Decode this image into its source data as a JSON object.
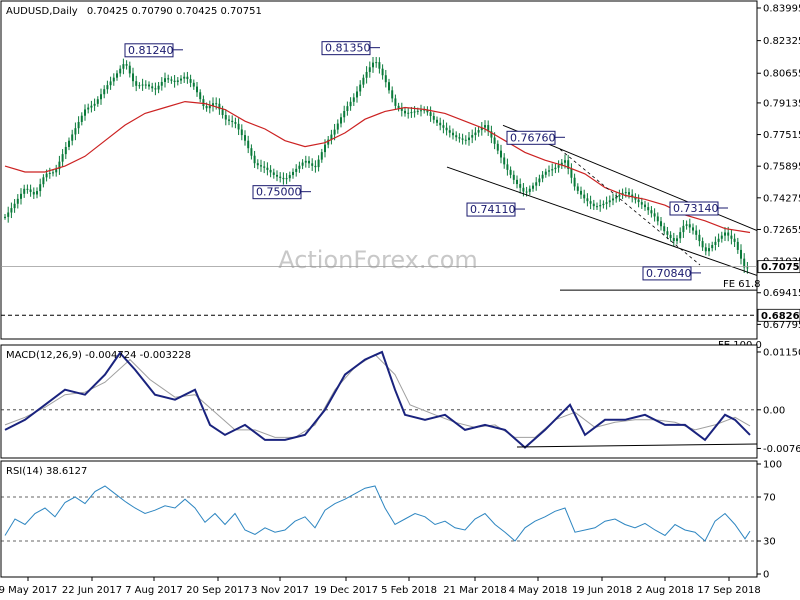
{
  "header": {
    "symbol": "AUDUSD,Daily",
    "ohlc": "0.70425 0.70790 0.70425 0.70751"
  },
  "watermark": "ActionForex.com",
  "colors": {
    "candle": "#0a7a3a",
    "ma": "#cc2222",
    "macd": "#1a237e",
    "signal": "#a0a0a0",
    "rsi": "#2e86c1",
    "grid": "#333333",
    "frame": "#000000"
  },
  "chart_data": [
    {
      "type": "line",
      "name": "price",
      "ylim": [
        0.672,
        0.842
      ],
      "yticks": [
        "0.83995",
        "0.83995",
        "0.82325",
        "0.80655",
        "0.79135",
        "0.77515",
        "0.75895",
        "0.74275",
        "0.72655",
        "0.71035",
        "0.69415",
        "0.67795"
      ],
      "ytick_values": [
        0.83995,
        0.83995,
        0.82325,
        0.80655,
        0.79135,
        0.77515,
        0.75895,
        0.74275,
        0.72655,
        0.71035,
        0.69415,
        0.67795
      ],
      "xticks": [
        "9 May 2017",
        "22 Jun 2017",
        "7 Aug 2017",
        "20 Sep 2017",
        "3 Nov 2017",
        "19 Dec 2017",
        "5 Feb 2018",
        "21 Mar 2018",
        "4 May 2018",
        "19 Jun 2018",
        "2 Aug 2018",
        "17 Sep 2018"
      ],
      "close_path": [
        [
          0,
          0.733
        ],
        [
          10,
          0.74
        ],
        [
          20,
          0.748
        ],
        [
          30,
          0.744
        ],
        [
          40,
          0.755
        ],
        [
          50,
          0.756
        ],
        [
          60,
          0.768
        ],
        [
          70,
          0.778
        ],
        [
          80,
          0.788
        ],
        [
          90,
          0.791
        ],
        [
          100,
          0.799
        ],
        [
          110,
          0.805
        ],
        [
          120,
          0.8124
        ],
        [
          130,
          0.8
        ],
        [
          140,
          0.801
        ],
        [
          150,
          0.798
        ],
        [
          160,
          0.804
        ],
        [
          170,
          0.802
        ],
        [
          180,
          0.805
        ],
        [
          190,
          0.799
        ],
        [
          200,
          0.788
        ],
        [
          210,
          0.792
        ],
        [
          220,
          0.783
        ],
        [
          230,
          0.781
        ],
        [
          240,
          0.772
        ],
        [
          250,
          0.76
        ],
        [
          260,
          0.758
        ],
        [
          270,
          0.754
        ],
        [
          280,
          0.752
        ],
        [
          290,
          0.757
        ],
        [
          300,
          0.762
        ],
        [
          310,
          0.758
        ],
        [
          320,
          0.77
        ],
        [
          330,
          0.778
        ],
        [
          340,
          0.788
        ],
        [
          350,
          0.795
        ],
        [
          360,
          0.806
        ],
        [
          370,
          0.8135
        ],
        [
          380,
          0.803
        ],
        [
          390,
          0.79
        ],
        [
          400,
          0.786
        ],
        [
          410,
          0.787
        ],
        [
          420,
          0.788
        ],
        [
          430,
          0.782
        ],
        [
          440,
          0.778
        ],
        [
          450,
          0.774
        ],
        [
          460,
          0.772
        ],
        [
          470,
          0.776
        ],
        [
          480,
          0.78
        ],
        [
          490,
          0.77
        ],
        [
          500,
          0.759
        ],
        [
          510,
          0.751
        ],
        [
          520,
          0.745
        ],
        [
          530,
          0.75
        ],
        [
          540,
          0.756
        ],
        [
          550,
          0.758
        ],
        [
          560,
          0.762
        ],
        [
          570,
          0.748
        ],
        [
          580,
          0.742
        ],
        [
          590,
          0.738
        ],
        [
          600,
          0.74
        ],
        [
          610,
          0.743
        ],
        [
          620,
          0.746
        ],
        [
          630,
          0.742
        ],
        [
          640,
          0.738
        ],
        [
          650,
          0.733
        ],
        [
          660,
          0.725
        ],
        [
          670,
          0.72
        ],
        [
          680,
          0.73
        ],
        [
          690,
          0.725
        ],
        [
          700,
          0.715
        ],
        [
          710,
          0.72
        ],
        [
          720,
          0.725
        ],
        [
          730,
          0.72
        ],
        [
          740,
          0.706
        ],
        [
          745,
          0.7075
        ]
      ],
      "ma_path": [
        [
          0,
          0.759
        ],
        [
          20,
          0.756
        ],
        [
          40,
          0.756
        ],
        [
          60,
          0.759
        ],
        [
          80,
          0.764
        ],
        [
          100,
          0.772
        ],
        [
          120,
          0.78
        ],
        [
          140,
          0.786
        ],
        [
          160,
          0.789
        ],
        [
          180,
          0.792
        ],
        [
          200,
          0.791
        ],
        [
          220,
          0.788
        ],
        [
          240,
          0.782
        ],
        [
          260,
          0.778
        ],
        [
          280,
          0.772
        ],
        [
          300,
          0.769
        ],
        [
          320,
          0.771
        ],
        [
          340,
          0.776
        ],
        [
          360,
          0.783
        ],
        [
          380,
          0.787
        ],
        [
          400,
          0.789
        ],
        [
          420,
          0.788
        ],
        [
          440,
          0.786
        ],
        [
          460,
          0.782
        ],
        [
          480,
          0.778
        ],
        [
          500,
          0.772
        ],
        [
          520,
          0.766
        ],
        [
          540,
          0.762
        ],
        [
          560,
          0.759
        ],
        [
          580,
          0.755
        ],
        [
          600,
          0.748
        ],
        [
          620,
          0.744
        ],
        [
          640,
          0.742
        ],
        [
          660,
          0.739
        ],
        [
          680,
          0.734
        ],
        [
          700,
          0.731
        ],
        [
          720,
          0.727
        ],
        [
          745,
          0.725
        ]
      ],
      "labels": [
        {
          "text": "0.81240",
          "x": 125,
          "y": 0.8124
        },
        {
          "text": "0.81350",
          "x": 322,
          "y": 0.8135
        },
        {
          "text": "0.75000",
          "x": 253,
          "y": 0.75
        },
        {
          "text": "0.76760",
          "x": 507,
          "y": 0.7676
        },
        {
          "text": "0.74110",
          "x": 467,
          "y": 0.7411
        },
        {
          "text": "0.73140",
          "x": 670,
          "y": 0.7314
        },
        {
          "text": "0.70840",
          "x": 643,
          "y": 0.7084
        }
      ],
      "current_price": "0.70751",
      "current_value": 0.70751,
      "level_label": "0.68260",
      "level_value": 0.6826,
      "fe_label": "FE 61.8",
      "fe_value": 0.6955,
      "fe100_label": "FE 100.0",
      "channel_upper": [
        [
          503,
          0.7799
        ],
        [
          757,
          0.726
        ]
      ],
      "channel_lower": [
        [
          447,
          0.7585
        ],
        [
          757,
          0.703
        ]
      ]
    },
    {
      "type": "line",
      "name": "MACD",
      "title": "MACD(12,26,9) -0.004724 -0.003228",
      "ylim": [
        -0.009,
        0.0123
      ],
      "yticks": [
        "0.011508",
        "0.00",
        "-0.007694"
      ],
      "ytick_values": [
        0.011508,
        0.0,
        -0.007694
      ],
      "zero_value": 0.0,
      "macd_path": [
        [
          0,
          -0.004
        ],
        [
          20,
          -0.002
        ],
        [
          40,
          0.001
        ],
        [
          60,
          0.004
        ],
        [
          80,
          0.003
        ],
        [
          100,
          0.007
        ],
        [
          115,
          0.0113
        ],
        [
          130,
          0.008
        ],
        [
          150,
          0.003
        ],
        [
          170,
          0.002
        ],
        [
          190,
          0.004
        ],
        [
          205,
          -0.003
        ],
        [
          220,
          -0.005
        ],
        [
          240,
          -0.003
        ],
        [
          260,
          -0.006
        ],
        [
          280,
          -0.006
        ],
        [
          300,
          -0.005
        ],
        [
          320,
          0.0
        ],
        [
          340,
          0.007
        ],
        [
          360,
          0.01
        ],
        [
          377,
          0.0115
        ],
        [
          390,
          0.004
        ],
        [
          400,
          -0.001
        ],
        [
          420,
          -0.002
        ],
        [
          440,
          -0.001
        ],
        [
          460,
          -0.004
        ],
        [
          480,
          -0.003
        ],
        [
          500,
          -0.004
        ],
        [
          520,
          -0.0075
        ],
        [
          540,
          -0.004
        ],
        [
          565,
          0.001
        ],
        [
          580,
          -0.005
        ],
        [
          600,
          -0.002
        ],
        [
          620,
          -0.002
        ],
        [
          640,
          -0.001
        ],
        [
          660,
          -0.003
        ],
        [
          680,
          -0.003
        ],
        [
          700,
          -0.006
        ],
        [
          720,
          -0.001
        ],
        [
          730,
          -0.002
        ],
        [
          745,
          -0.005
        ]
      ],
      "signal_path": [
        [
          0,
          -0.003
        ],
        [
          20,
          -0.0015
        ],
        [
          40,
          0.0005
        ],
        [
          60,
          0.003
        ],
        [
          80,
          0.0035
        ],
        [
          100,
          0.0055
        ],
        [
          125,
          0.01
        ],
        [
          145,
          0.006
        ],
        [
          170,
          0.0025
        ],
        [
          190,
          0.003
        ],
        [
          210,
          -0.0005
        ],
        [
          230,
          -0.004
        ],
        [
          250,
          -0.004
        ],
        [
          270,
          -0.0055
        ],
        [
          290,
          -0.0055
        ],
        [
          310,
          -0.003
        ],
        [
          330,
          0.004
        ],
        [
          350,
          0.0085
        ],
        [
          370,
          0.011
        ],
        [
          390,
          0.007
        ],
        [
          405,
          0.001
        ],
        [
          430,
          -0.001
        ],
        [
          450,
          -0.0025
        ],
        [
          470,
          -0.0035
        ],
        [
          490,
          -0.003
        ],
        [
          510,
          -0.0055
        ],
        [
          530,
          -0.0055
        ],
        [
          550,
          -0.002
        ],
        [
          570,
          -0.0005
        ],
        [
          590,
          -0.0035
        ],
        [
          610,
          -0.0025
        ],
        [
          630,
          -0.002
        ],
        [
          650,
          -0.002
        ],
        [
          670,
          -0.0025
        ],
        [
          690,
          -0.004
        ],
        [
          710,
          -0.003
        ],
        [
          730,
          -0.0015
        ],
        [
          745,
          -0.0032
        ]
      ],
      "support": [
        [
          517,
          -0.0074
        ],
        [
          757,
          -0.0068
        ]
      ]
    },
    {
      "type": "line",
      "name": "RSI",
      "title": "RSI(14) 38.6127",
      "ylim": [
        0,
        100
      ],
      "yticks": [
        "100",
        "70",
        "30",
        "0"
      ],
      "ytick_values": [
        100,
        70,
        30,
        0
      ],
      "levels": [
        70,
        30
      ],
      "rsi_path": [
        [
          0,
          35
        ],
        [
          10,
          50
        ],
        [
          20,
          45
        ],
        [
          30,
          55
        ],
        [
          40,
          60
        ],
        [
          50,
          52
        ],
        [
          60,
          65
        ],
        [
          70,
          70
        ],
        [
          80,
          64
        ],
        [
          90,
          75
        ],
        [
          100,
          80
        ],
        [
          110,
          73
        ],
        [
          120,
          66
        ],
        [
          130,
          60
        ],
        [
          140,
          55
        ],
        [
          150,
          58
        ],
        [
          160,
          62
        ],
        [
          170,
          60
        ],
        [
          180,
          68
        ],
        [
          190,
          60
        ],
        [
          200,
          47
        ],
        [
          210,
          55
        ],
        [
          220,
          45
        ],
        [
          230,
          55
        ],
        [
          240,
          40
        ],
        [
          250,
          36
        ],
        [
          260,
          42
        ],
        [
          270,
          38
        ],
        [
          280,
          40
        ],
        [
          290,
          48
        ],
        [
          300,
          52
        ],
        [
          310,
          42
        ],
        [
          320,
          58
        ],
        [
          330,
          64
        ],
        [
          340,
          68
        ],
        [
          350,
          73
        ],
        [
          360,
          78
        ],
        [
          370,
          80
        ],
        [
          380,
          60
        ],
        [
          390,
          45
        ],
        [
          400,
          50
        ],
        [
          410,
          55
        ],
        [
          420,
          52
        ],
        [
          430,
          45
        ],
        [
          440,
          48
        ],
        [
          450,
          42
        ],
        [
          460,
          40
        ],
        [
          470,
          50
        ],
        [
          480,
          55
        ],
        [
          490,
          45
        ],
        [
          500,
          38
        ],
        [
          510,
          30
        ],
        [
          520,
          42
        ],
        [
          530,
          48
        ],
        [
          540,
          52
        ],
        [
          550,
          57
        ],
        [
          560,
          60
        ],
        [
          570,
          38
        ],
        [
          580,
          40
        ],
        [
          590,
          42
        ],
        [
          600,
          48
        ],
        [
          610,
          50
        ],
        [
          620,
          45
        ],
        [
          630,
          42
        ],
        [
          640,
          46
        ],
        [
          650,
          40
        ],
        [
          660,
          35
        ],
        [
          670,
          45
        ],
        [
          680,
          40
        ],
        [
          690,
          38
        ],
        [
          700,
          30
        ],
        [
          710,
          48
        ],
        [
          720,
          55
        ],
        [
          730,
          45
        ],
        [
          740,
          32
        ],
        [
          745,
          39
        ]
      ]
    }
  ]
}
